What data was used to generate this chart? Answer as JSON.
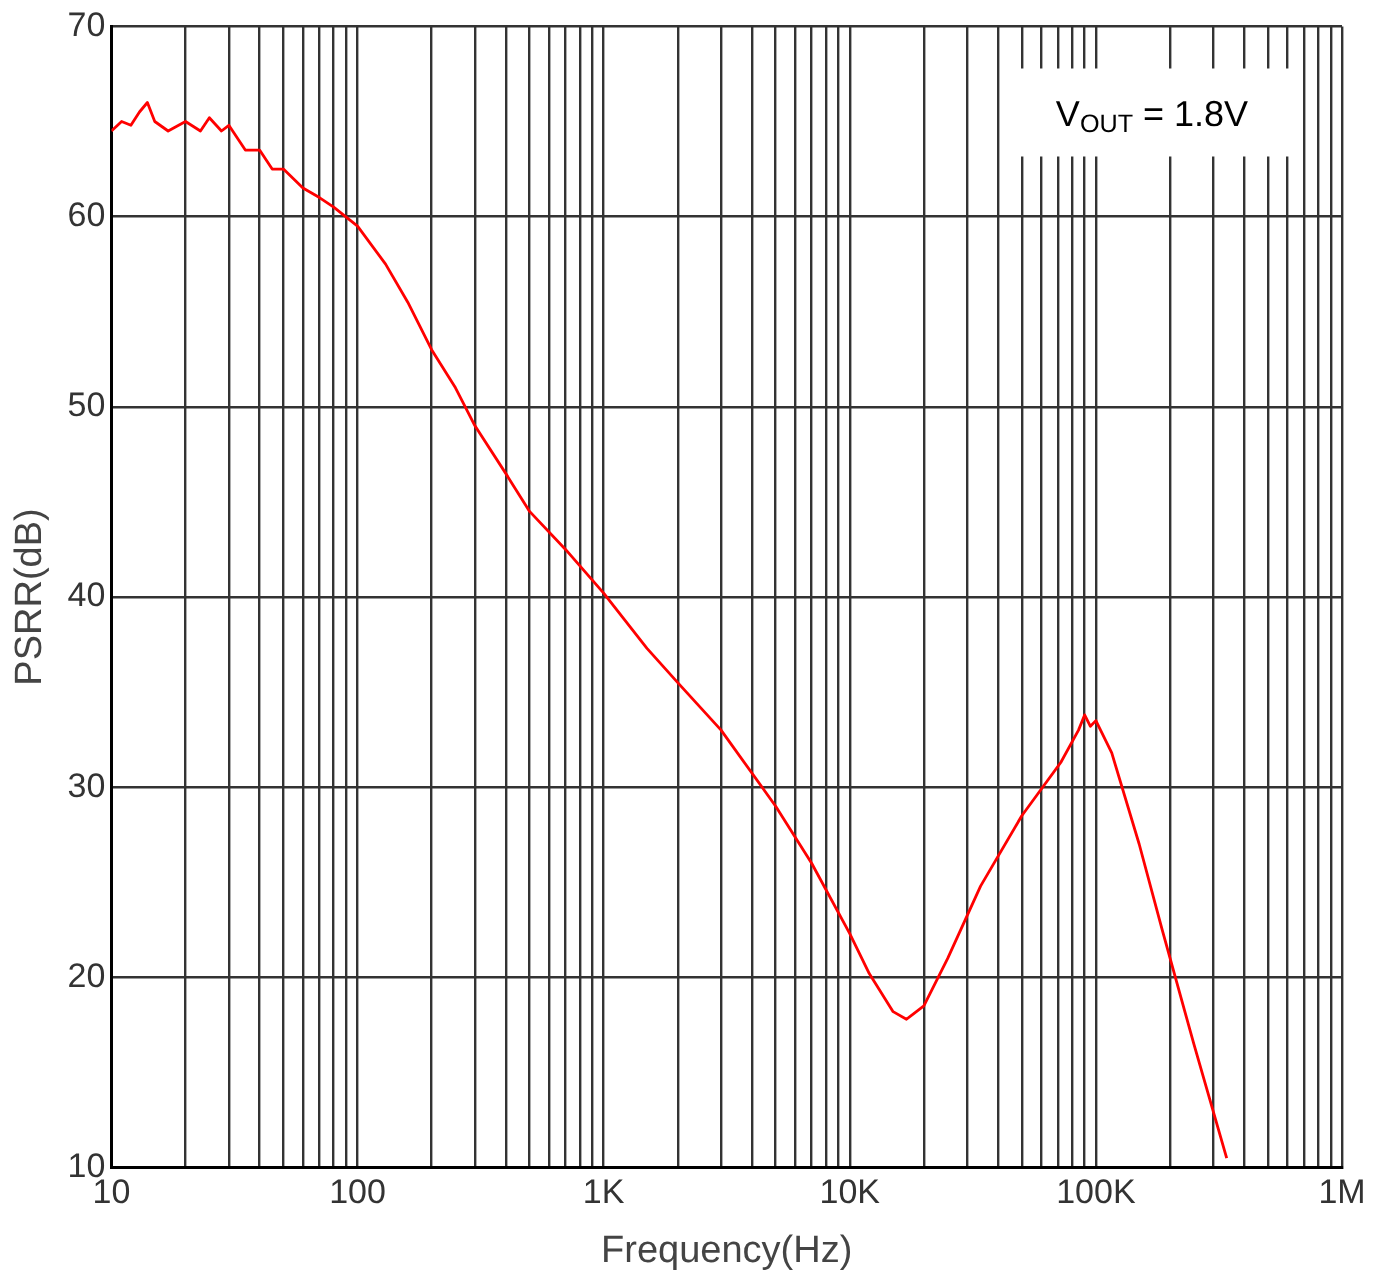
{
  "chart_data": {
    "type": "line",
    "xlabel": "Frequency(Hz)",
    "ylabel": "PSRR(dB)",
    "log": "x",
    "grid": true,
    "legend": false,
    "marker": "none",
    "line_style": "solid",
    "annotations": [
      "V$_{OUT}$ = 1.8V"
    ],
    "xlim": [
      10,
      1000000
    ],
    "ylim": [
      10,
      70
    ],
    "xticks": [
      10,
      {
        "value": 20,
        "label": null
      },
      {
        "value": 30,
        "label": null
      },
      {
        "value": 40,
        "label": null
      },
      {
        "value": 50,
        "label": null
      },
      {
        "value": 60,
        "label": null
      },
      {
        "value": 70,
        "label": null
      },
      {
        "value": 80,
        "label": null
      },
      {
        "value": 90,
        "label": null
      },
      100,
      {
        "value": 200,
        "label": null
      },
      {
        "value": 300,
        "label": null
      },
      {
        "value": 400,
        "label": null
      },
      {
        "value": 500,
        "label": null
      },
      {
        "value": 600,
        "label": null
      },
      {
        "value": 700,
        "label": null
      },
      {
        "value": 800,
        "label": null
      },
      {
        "value": 900,
        "label": null
      },
      {
        "value": 1000,
        "label": "1K"
      },
      {
        "value": 2000,
        "label": null
      },
      {
        "value": 3000,
        "label": null
      },
      {
        "value": 4000,
        "label": null
      },
      {
        "value": 5000,
        "label": null
      },
      {
        "value": 6000,
        "label": null
      },
      {
        "value": 7000,
        "label": null
      },
      {
        "value": 8000,
        "label": null
      },
      {
        "value": 9000,
        "label": null
      },
      {
        "value": 10000,
        "label": "10K"
      },
      {
        "value": 20000,
        "label": null
      },
      {
        "value": 30000,
        "label": null
      },
      {
        "value": 40000,
        "label": null
      },
      {
        "value": 50000,
        "label": null
      },
      {
        "value": 60000,
        "label": null
      },
      {
        "value": 70000,
        "label": null
      },
      {
        "value": 80000,
        "label": null
      },
      {
        "value": 90000,
        "label": null
      },
      {
        "value": 100000,
        "label": "100K"
      },
      {
        "value": 200000,
        "label": null
      },
      {
        "value": 300000,
        "label": null
      },
      {
        "value": 400000,
        "label": null
      },
      {
        "value": 500000,
        "label": null
      },
      {
        "value": 600000,
        "label": null
      },
      {
        "value": 700000,
        "label": null
      },
      {
        "value": 800000,
        "label": null
      },
      {
        "value": 900000,
        "label": null
      },
      {
        "value": 1000000,
        "label": "1M"
      }
    ],
    "yticks": [
      10,
      20,
      30,
      40,
      50,
      60,
      70
    ],
    "series": [
      {
        "color": "#ff0000",
        "x": [
          10,
          11,
          12,
          13,
          14,
          15,
          17,
          20,
          23,
          25,
          28,
          30,
          35,
          40,
          45,
          50,
          60,
          70,
          80,
          100,
          130,
          160,
          200,
          250,
          300,
          400,
          500,
          700,
          1000,
          1500,
          2000,
          3000,
          5000,
          7000,
          10000,
          12000,
          15000,
          17000,
          20000,
          25000,
          34000,
          50000,
          72000,
          85000,
          90000,
          95000,
          100000,
          116000,
          150000,
          186000,
          250000,
          340000
        ],
        "values": [
          64.5,
          65,
          64.8,
          65.5,
          66,
          65,
          64.5,
          65,
          64.5,
          65.2,
          64.5,
          64.8,
          63.5,
          63.5,
          62.5,
          62.5,
          61.5,
          61,
          60.5,
          59.5,
          57.5,
          55.5,
          53,
          51,
          49,
          46.5,
          44.5,
          42.5,
          40.2,
          37.3,
          35.5,
          33,
          29,
          26,
          22.3,
          20.2,
          18.2,
          17.8,
          18.5,
          21,
          24.8,
          28.5,
          31.3,
          33,
          33.8,
          33.2,
          33.5,
          31.8,
          27,
          22.5,
          16.5,
          10.5
        ]
      }
    ]
  }
}
